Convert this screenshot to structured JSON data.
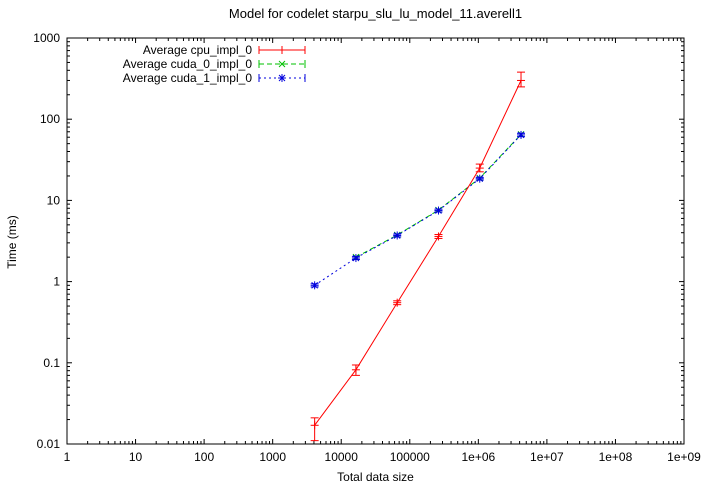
{
  "chart_data": {
    "type": "line",
    "title": "Model for codelet starpu_slu_lu_model_11.averell1",
    "xlabel": "Total data size",
    "ylabel": "Time (ms)",
    "xscale": "log",
    "yscale": "log",
    "xlim": [
      1,
      1000000000.0
    ],
    "ylim": [
      0.01,
      1000
    ],
    "grid": false,
    "legend_position": "inside-top-left",
    "x_ticklabels": [
      "1",
      "10",
      "100",
      "1000",
      "10000",
      "100000",
      "1e+06",
      "1e+07",
      "1e+08",
      "1e+09"
    ],
    "y_ticklabels": [
      "0.01",
      "0.1",
      "1",
      "10",
      "100",
      "1000"
    ],
    "axis_color": "#000000",
    "background_color": "#ffffff",
    "series": [
      {
        "name": "Average cpu_impl_0",
        "color": "#ff0000",
        "line_style": "solid",
        "marker": "plus",
        "x": [
          4096,
          16384,
          65536,
          262144,
          1048576,
          4194304
        ],
        "y": [
          0.017,
          0.082,
          0.55,
          3.6,
          25,
          300
        ],
        "y_lo": [
          0.011,
          0.07,
          0.52,
          3.4,
          22.5,
          250
        ],
        "y_hi": [
          0.021,
          0.094,
          0.58,
          3.8,
          28,
          380
        ]
      },
      {
        "name": "Average cuda_0_impl_0",
        "color": "#00c000",
        "line_style": "dashed",
        "marker": "cross",
        "x": [
          16384,
          65536,
          262144,
          1048576,
          4194304
        ],
        "y": [
          2.0,
          3.75,
          7.6,
          18.8,
          65
        ]
      },
      {
        "name": "Average cuda_1_impl_0",
        "color": "#0000dd",
        "line_style": "dotted",
        "marker": "star",
        "x": [
          4096,
          16384,
          65536,
          262144,
          1048576,
          4194304
        ],
        "y": [
          0.9,
          1.95,
          3.7,
          7.5,
          18.5,
          64
        ],
        "y_lo": [
          0.86,
          1.87,
          3.55,
          7.2,
          17.8,
          61
        ],
        "y_hi": [
          0.94,
          2.03,
          3.85,
          7.8,
          19.2,
          67
        ]
      }
    ]
  }
}
